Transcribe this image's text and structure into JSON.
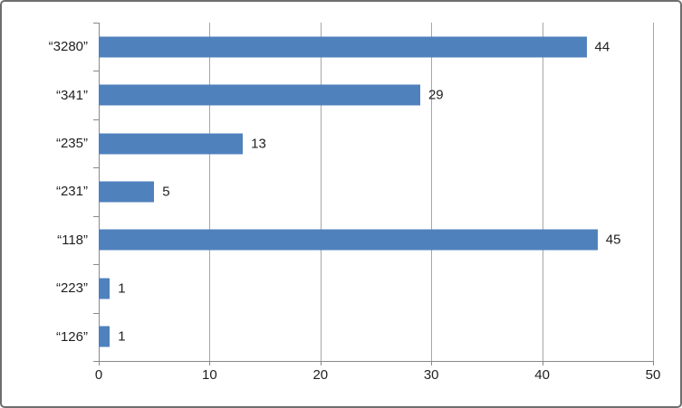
{
  "chart_data": {
    "type": "bar",
    "orientation": "horizontal",
    "title": "",
    "xlabel": "",
    "ylabel": "",
    "categories": [
      "“3280”",
      "“341”",
      "“235”",
      "“231”",
      "“118”",
      "“223”",
      "“126”"
    ],
    "values": [
      44,
      29,
      13,
      5,
      45,
      1,
      1
    ],
    "data_labels": [
      "44",
      "29",
      "13",
      "5",
      "45",
      "1",
      "1"
    ],
    "xlim": [
      0,
      50
    ],
    "xticks": [
      "0",
      "10",
      "20",
      "30",
      "40",
      "50"
    ],
    "grid": "vertical-major",
    "legend": "none",
    "colors": {
      "bar": "#4F81BD",
      "gridline": "#A6A6A6",
      "axis": "#898989",
      "text": "#1F1F1F",
      "frame_border": "#6E6E6E",
      "background": "#FFFFFF"
    }
  }
}
